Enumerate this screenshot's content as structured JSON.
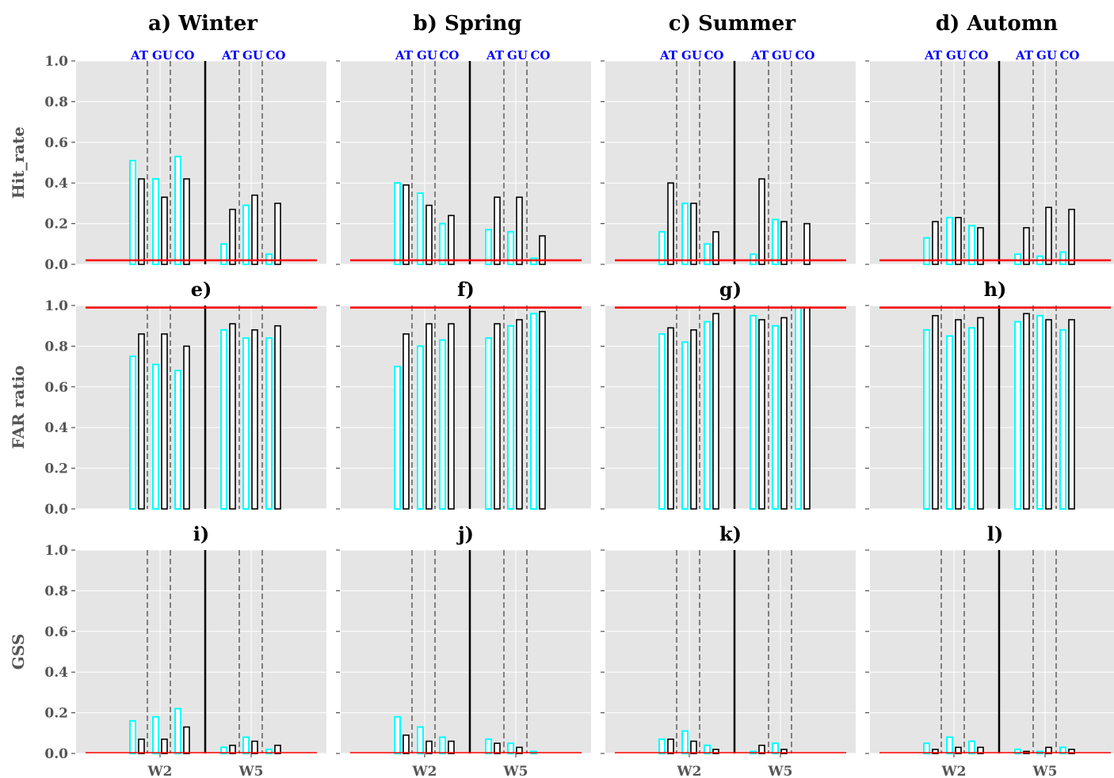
{
  "colors": {
    "model_a": "#00ffff",
    "model_b": "#000000",
    "reference": "#ff0000",
    "panel_bg": "#e5e5e5",
    "group_label": "#0000ff"
  },
  "chart_data": {
    "type": "bar",
    "columns": [
      "a) Winter",
      "b) Spring",
      "c) Summer",
      "d) Automn"
    ],
    "rows": [
      {
        "ylabel": "Hit_rate",
        "subtitles": [
          "",
          "",
          "",
          ""
        ],
        "reference": 0.02
      },
      {
        "ylabel": "FAR ratio",
        "subtitles": [
          "e)",
          "f)",
          "g)",
          "h)"
        ],
        "reference": 0.99
      },
      {
        "ylabel": "GSS",
        "subtitles": [
          "i)",
          "j)",
          "k)",
          "l)"
        ],
        "reference": 0.0
      }
    ],
    "ylim": [
      0,
      1
    ],
    "yticks": [
      "0.0",
      "0.2",
      "0.4",
      "0.6",
      "0.8",
      "1.0"
    ],
    "xtick_labels": [
      "W2",
      "W5"
    ],
    "group_labels": [
      "AT",
      "GU",
      "CO",
      "AT",
      "GU",
      "CO"
    ],
    "grid": true,
    "values": [
      [
        {
          "a": [
            0.51,
            0.42,
            0.53,
            0.1,
            0.29,
            0.05
          ],
          "b": [
            0.42,
            0.33,
            0.42,
            0.27,
            0.34,
            0.3
          ]
        },
        {
          "a": [
            0.4,
            0.35,
            0.2,
            0.17,
            0.16,
            0.03
          ],
          "b": [
            0.39,
            0.29,
            0.24,
            0.33,
            0.33,
            0.14
          ]
        },
        {
          "a": [
            0.16,
            0.3,
            0.1,
            0.05,
            0.22,
            0.0
          ],
          "b": [
            0.4,
            0.3,
            0.16,
            0.42,
            0.21,
            0.2
          ]
        },
        {
          "a": [
            0.13,
            0.23,
            0.19,
            0.05,
            0.04,
            0.06
          ],
          "b": [
            0.21,
            0.23,
            0.18,
            0.18,
            0.28,
            0.27
          ]
        }
      ],
      [
        {
          "a": [
            0.75,
            0.71,
            0.68,
            0.88,
            0.84,
            0.84
          ],
          "b": [
            0.86,
            0.86,
            0.8,
            0.91,
            0.88,
            0.9
          ]
        },
        {
          "a": [
            0.7,
            0.8,
            0.83,
            0.84,
            0.9,
            0.96
          ],
          "b": [
            0.86,
            0.91,
            0.91,
            0.91,
            0.93,
            0.97
          ]
        },
        {
          "a": [
            0.86,
            0.82,
            0.92,
            0.95,
            0.9,
            0.99
          ],
          "b": [
            0.89,
            0.88,
            0.96,
            0.93,
            0.94,
            0.99
          ]
        },
        {
          "a": [
            0.88,
            0.85,
            0.89,
            0.92,
            0.95,
            0.88
          ],
          "b": [
            0.95,
            0.93,
            0.94,
            0.96,
            0.93,
            0.93
          ]
        }
      ],
      [
        {
          "a": [
            0.16,
            0.18,
            0.22,
            0.03,
            0.08,
            0.02
          ],
          "b": [
            0.07,
            0.07,
            0.13,
            0.04,
            0.06,
            0.04
          ]
        },
        {
          "a": [
            0.18,
            0.13,
            0.08,
            0.07,
            0.05,
            0.01
          ],
          "b": [
            0.09,
            0.06,
            0.06,
            0.05,
            0.03,
            0.0
          ]
        },
        {
          "a": [
            0.07,
            0.11,
            0.04,
            0.01,
            0.05,
            0.0
          ],
          "b": [
            0.07,
            0.06,
            0.02,
            0.04,
            0.02,
            0.0
          ]
        },
        {
          "a": [
            0.05,
            0.08,
            0.06,
            0.02,
            0.01,
            0.03
          ],
          "b": [
            0.02,
            0.03,
            0.03,
            0.01,
            0.03,
            0.02
          ]
        }
      ]
    ]
  }
}
